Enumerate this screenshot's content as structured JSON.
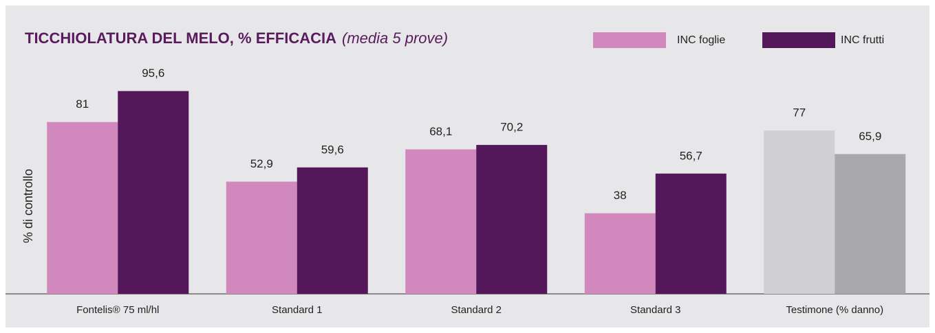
{
  "chart_data": {
    "type": "bar",
    "title": "TICCHIOLATURA DEL MELO, % EFFICACIA",
    "subtitle": "(media 5 prove)",
    "y_label": "% di controllo",
    "categories": [
      "Fontelis® 75 ml/hl",
      "Standard 1",
      "Standard 2",
      "Standard 3",
      "Testimone (% danno)"
    ],
    "series": [
      {
        "name": "INC foglie",
        "color": "#d088bd",
        "colors": [
          "#d088bd",
          "#d088bd",
          "#d088bd",
          "#d088bd",
          "#d0d0d2"
        ],
        "values": [
          81,
          52.9,
          68.1,
          38,
          77
        ],
        "value_labels": [
          "81",
          "52,9",
          "68,1",
          "38",
          "77"
        ]
      },
      {
        "name": "INC frutti",
        "color": "#54175a",
        "colors": [
          "#54175a",
          "#54175a",
          "#54175a",
          "#54175a",
          "#a9a9ab"
        ],
        "values": [
          95.6,
          59.6,
          70.2,
          56.7,
          65.9
        ],
        "value_labels": [
          "95,6",
          "59,6",
          "70,2",
          "56,7",
          "65,9"
        ]
      }
    ],
    "ylim": [
      0,
      100
    ]
  }
}
